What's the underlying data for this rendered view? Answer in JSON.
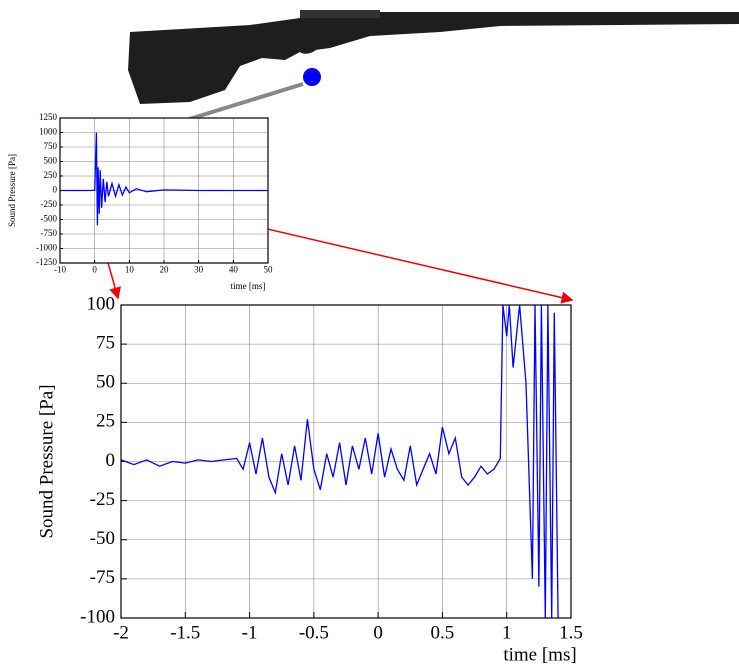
{
  "chart_data": [
    {
      "type": "line",
      "x_label": "time [ms]",
      "y_label": "Sound Pressure [Pa]",
      "xlim": [
        -10,
        50
      ],
      "xticks": [
        -10,
        0,
        10,
        20,
        30,
        40,
        50
      ],
      "ylim": [
        -1250,
        1250
      ],
      "yticks": [
        -1250,
        -1000,
        -750,
        -500,
        -250,
        0,
        250,
        500,
        750,
        1000,
        1250
      ],
      "grid": true,
      "color": "#0000ff",
      "x": [
        -10,
        -1,
        0,
        0.5,
        0.8,
        1,
        1.3,
        1.6,
        2,
        2.5,
        3,
        3.5,
        4,
        5,
        6,
        7,
        8,
        9,
        10,
        12,
        15,
        20,
        30,
        50
      ],
      "values": [
        0,
        0,
        5,
        1000,
        -600,
        400,
        -400,
        350,
        -300,
        200,
        -200,
        150,
        -100,
        120,
        -100,
        100,
        -80,
        60,
        -40,
        30,
        -20,
        10,
        0,
        0
      ]
    },
    {
      "type": "line",
      "x_label": "time [ms]",
      "y_label": "Sound Pressure [Pa]",
      "xlim": [
        -2,
        1.5
      ],
      "xticks": [
        -2,
        -1.5,
        -1,
        -0.5,
        0,
        0.5,
        1,
        1.5
      ],
      "ylim": [
        -100,
        100
      ],
      "yticks": [
        -100,
        -75,
        -50,
        -25,
        0,
        25,
        50,
        75,
        100
      ],
      "grid": true,
      "color": "#0000ff",
      "x": [
        -2,
        -1.9,
        -1.8,
        -1.7,
        -1.6,
        -1.5,
        -1.4,
        -1.3,
        -1.2,
        -1.1,
        -1.05,
        -1.0,
        -0.95,
        -0.9,
        -0.85,
        -0.8,
        -0.75,
        -0.7,
        -0.65,
        -0.6,
        -0.55,
        -0.5,
        -0.45,
        -0.4,
        -0.35,
        -0.3,
        -0.25,
        -0.2,
        -0.15,
        -0.1,
        -0.05,
        0,
        0.05,
        0.1,
        0.15,
        0.2,
        0.25,
        0.3,
        0.35,
        0.4,
        0.45,
        0.5,
        0.55,
        0.6,
        0.65,
        0.7,
        0.75,
        0.8,
        0.85,
        0.9,
        0.95,
        0.97,
        1.0,
        1.02,
        1.05,
        1.1,
        1.15,
        1.2,
        1.22,
        1.25,
        1.27,
        1.3,
        1.32,
        1.35,
        1.37,
        1.4
      ],
      "values": [
        1,
        -2,
        1,
        -3,
        0,
        -1,
        1,
        0,
        1,
        2,
        -5,
        12,
        -8,
        15,
        -10,
        -20,
        5,
        -15,
        10,
        -12,
        27,
        -5,
        -18,
        5,
        -10,
        12,
        -15,
        10,
        -5,
        15,
        -8,
        18,
        -10,
        8,
        -5,
        -12,
        10,
        -15,
        -5,
        5,
        -8,
        22,
        5,
        15,
        -10,
        -15,
        -10,
        -3,
        -8,
        -5,
        2,
        100,
        80,
        100,
        60,
        100,
        50,
        -75,
        100,
        -80,
        100,
        -100,
        100,
        -100,
        95,
        -100
      ]
    }
  ]
}
